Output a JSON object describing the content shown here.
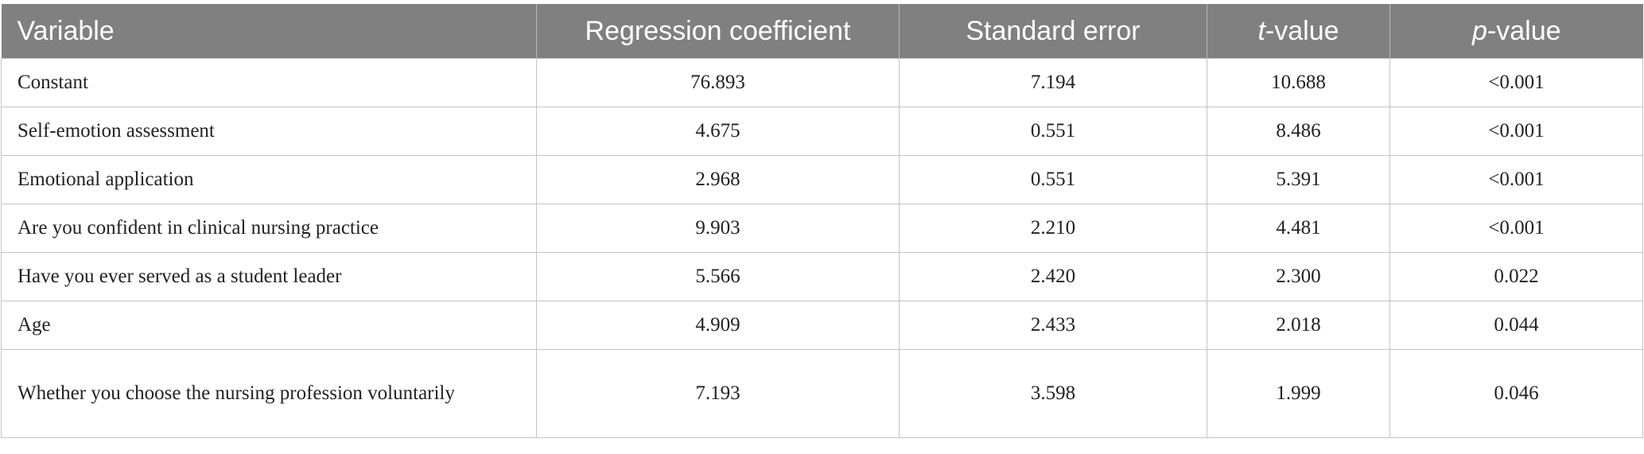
{
  "table": {
    "headers": [
      "Variable",
      "Regression coefficient",
      "Standard error",
      {
        "italic": "t",
        "text": "-value"
      },
      {
        "italic": "p",
        "text": "-value"
      }
    ],
    "rows": [
      [
        "Constant",
        "76.893",
        "7.194",
        "10.688",
        "<0.001"
      ],
      [
        "Self-emotion assessment",
        "4.675",
        "0.551",
        "8.486",
        "<0.001"
      ],
      [
        "Emotional application",
        "2.968",
        "0.551",
        "5.391",
        "<0.001"
      ],
      [
        "Are you confident in clinical nursing practice",
        "9.903",
        "2.210",
        "4.481",
        "<0.001"
      ],
      [
        "Have you ever served as a student leader",
        "5.566",
        "2.420",
        "2.300",
        "0.022"
      ],
      [
        "Age",
        "4.909",
        "2.433",
        "2.018",
        "0.044"
      ],
      [
        "Whether you choose the nursing profession voluntarily",
        "7.193",
        "3.598",
        "1.999",
        "0.046"
      ]
    ]
  }
}
